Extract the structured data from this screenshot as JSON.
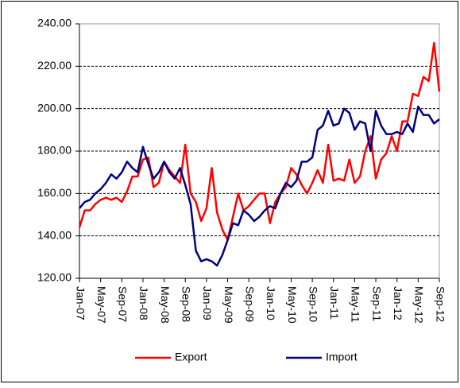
{
  "chart_data": {
    "type": "line",
    "categories": [
      "Jan-07",
      null,
      null,
      null,
      "May-07",
      null,
      null,
      null,
      "Sep-07",
      null,
      null,
      null,
      "Jan-08",
      null,
      null,
      null,
      "May-08",
      null,
      null,
      null,
      "Sep-08",
      null,
      null,
      null,
      "Jan-09",
      null,
      null,
      null,
      "May-09",
      null,
      null,
      null,
      "Sep-09",
      null,
      null,
      null,
      "Jan-10",
      null,
      null,
      null,
      "May-10",
      null,
      null,
      null,
      "Sep-10",
      null,
      null,
      null,
      "Jan-11",
      null,
      null,
      null,
      "May-11",
      null,
      null,
      null,
      "Sep-11",
      null,
      null,
      null,
      "Jan-12",
      null,
      null,
      null,
      "May-12",
      null,
      null,
      null,
      "Sep-12"
    ],
    "series": [
      {
        "name": "Export",
        "color": "#ff0000",
        "values": [
          144,
          152,
          152,
          155,
          157,
          158,
          157,
          158,
          156,
          161,
          168,
          168,
          176,
          177,
          163,
          165,
          175,
          171,
          168,
          165,
          183,
          160,
          156,
          147,
          153,
          172,
          151,
          143,
          138,
          149,
          160,
          152,
          154,
          157,
          160,
          160,
          146,
          156,
          160,
          163,
          172,
          169,
          164,
          160,
          165,
          171,
          165,
          183,
          166,
          167,
          166,
          176,
          165,
          168,
          180,
          187,
          167,
          176,
          179,
          187,
          180,
          194,
          194,
          207,
          206,
          215,
          213,
          231,
          208
        ]
      },
      {
        "name": "Import",
        "color": "#000080",
        "values": [
          153,
          156,
          157,
          160,
          162,
          165,
          169,
          167,
          170,
          175,
          172,
          170,
          182,
          174,
          167,
          170,
          175,
          170,
          167,
          172,
          164,
          155,
          133,
          128,
          129,
          128,
          126,
          131,
          138,
          146,
          145,
          152,
          150,
          147,
          149,
          152,
          154,
          153,
          160,
          165,
          163,
          166,
          175,
          175,
          177,
          190,
          192,
          199,
          192,
          193,
          200,
          198,
          190,
          194,
          193,
          180,
          199,
          192,
          188,
          188,
          189,
          188,
          193,
          189,
          201,
          197,
          197,
          193,
          195
        ]
      }
    ],
    "ylim": [
      120,
      240
    ],
    "yticks": [
      {
        "value": 120,
        "label": "120.00"
      },
      {
        "value": 140,
        "label": "140.00"
      },
      {
        "value": 160,
        "label": "160.00"
      },
      {
        "value": 180,
        "label": "180.00"
      },
      {
        "value": 200,
        "label": "200.00"
      },
      {
        "value": 220,
        "label": "220.00"
      },
      {
        "value": 240,
        "label": "240.00"
      }
    ],
    "grid": true,
    "legend": "bottom"
  }
}
